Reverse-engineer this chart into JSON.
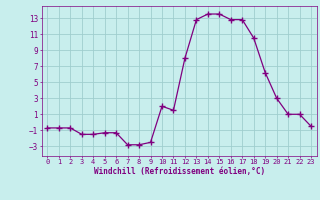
{
  "x": [
    0,
    1,
    2,
    3,
    4,
    5,
    6,
    7,
    8,
    9,
    10,
    11,
    12,
    13,
    14,
    15,
    16,
    17,
    18,
    19,
    20,
    21,
    22,
    23
  ],
  "y": [
    -0.7,
    -0.7,
    -0.7,
    -1.5,
    -1.5,
    -1.3,
    -1.3,
    -2.8,
    -2.8,
    -2.5,
    2.0,
    1.5,
    8.0,
    12.8,
    13.5,
    13.5,
    12.8,
    12.8,
    10.5,
    6.2,
    3.0,
    1.0,
    1.0,
    -0.5
  ],
  "line_color": "#800080",
  "marker_color": "#800080",
  "bg_color": "#c8eeed",
  "grid_color": "#a0cece",
  "tick_color": "#800080",
  "xlabel": "Windchill (Refroidissement éolien,°C)",
  "yticks": [
    -3,
    -1,
    1,
    3,
    5,
    7,
    9,
    11,
    13
  ],
  "xticks": [
    0,
    1,
    2,
    3,
    4,
    5,
    6,
    7,
    8,
    9,
    10,
    11,
    12,
    13,
    14,
    15,
    16,
    17,
    18,
    19,
    20,
    21,
    22,
    23
  ],
  "ylim": [
    -4.2,
    14.5
  ],
  "xlim": [
    -0.5,
    23.5
  ]
}
